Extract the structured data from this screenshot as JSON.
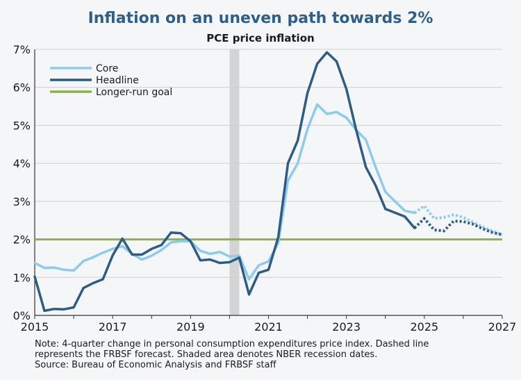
{
  "title": "Inflation on an uneven path towards 2%",
  "subtitle": "PCE price inflation",
  "notes": [
    "Note: 4-quarter change in personal consumption expenditures price index. Dashed line",
    "represents the FRBSF forecast. Shaded area denotes NBER recession dates.",
    "Source: Bureau of Economic Analysis and FRBSF staff"
  ],
  "chart_data": {
    "type": "line",
    "title": "Inflation on an uneven path towards 2%",
    "subtitle": "PCE price inflation",
    "xlabel": "",
    "ylabel": "",
    "xlim": [
      2015,
      2027
    ],
    "ylim": [
      0,
      7
    ],
    "x_ticks": [
      2015,
      2017,
      2019,
      2021,
      2023,
      2025,
      2027
    ],
    "x_tick_labels": [
      "2015",
      "2017",
      "2019",
      "2021",
      "2023",
      "2025",
      "2027"
    ],
    "y_ticks": [
      0,
      1,
      2,
      3,
      4,
      5,
      6,
      7
    ],
    "y_tick_labels": [
      "0%",
      "1%",
      "2%",
      "3%",
      "4%",
      "5%",
      "6%",
      "7%"
    ],
    "grid": "horizontal",
    "legend_position": "top-left",
    "recession": {
      "start": 2020.0,
      "end": 2020.25,
      "color": "#d4d4d4"
    },
    "series": [
      {
        "name": "Core",
        "color": "#8ccbef",
        "values": [
          [
            2015.0,
            1.38
          ],
          [
            2015.25,
            1.25
          ],
          [
            2015.5,
            1.26
          ],
          [
            2015.75,
            1.2
          ],
          [
            2016.0,
            1.18
          ],
          [
            2016.25,
            1.43
          ],
          [
            2016.5,
            1.53
          ],
          [
            2016.75,
            1.65
          ],
          [
            2017.0,
            1.75
          ],
          [
            2017.25,
            1.82
          ],
          [
            2017.5,
            1.62
          ],
          [
            2017.75,
            1.47
          ],
          [
            2018.0,
            1.57
          ],
          [
            2018.25,
            1.72
          ],
          [
            2018.5,
            1.92
          ],
          [
            2018.75,
            1.95
          ],
          [
            2019.0,
            1.95
          ],
          [
            2019.25,
            1.7
          ],
          [
            2019.5,
            1.62
          ],
          [
            2019.75,
            1.67
          ],
          [
            2020.0,
            1.55
          ],
          [
            2020.25,
            1.57
          ],
          [
            2020.5,
            0.95
          ],
          [
            2020.75,
            1.32
          ],
          [
            2021.0,
            1.42
          ],
          [
            2021.25,
            1.9
          ],
          [
            2021.5,
            3.55
          ],
          [
            2021.75,
            4.0
          ],
          [
            2022.0,
            4.9
          ],
          [
            2022.25,
            5.55
          ],
          [
            2022.5,
            5.3
          ],
          [
            2022.75,
            5.35
          ],
          [
            2023.0,
            5.2
          ],
          [
            2023.25,
            4.88
          ],
          [
            2023.5,
            4.62
          ],
          [
            2023.75,
            3.9
          ],
          [
            2024.0,
            3.25
          ],
          [
            2024.25,
            3.0
          ],
          [
            2024.5,
            2.75
          ],
          [
            2024.75,
            2.7
          ]
        ]
      },
      {
        "name": "Headline",
        "color": "#2d5c87",
        "values": [
          [
            2015.0,
            1.02
          ],
          [
            2015.25,
            0.12
          ],
          [
            2015.5,
            0.17
          ],
          [
            2015.75,
            0.16
          ],
          [
            2016.0,
            0.21
          ],
          [
            2016.25,
            0.72
          ],
          [
            2016.5,
            0.85
          ],
          [
            2016.75,
            0.95
          ],
          [
            2017.0,
            1.58
          ],
          [
            2017.25,
            2.02
          ],
          [
            2017.5,
            1.6
          ],
          [
            2017.75,
            1.6
          ],
          [
            2018.0,
            1.75
          ],
          [
            2018.25,
            1.85
          ],
          [
            2018.5,
            2.18
          ],
          [
            2018.75,
            2.16
          ],
          [
            2019.0,
            1.95
          ],
          [
            2019.25,
            1.45
          ],
          [
            2019.5,
            1.47
          ],
          [
            2019.75,
            1.38
          ],
          [
            2020.0,
            1.4
          ],
          [
            2020.25,
            1.52
          ],
          [
            2020.5,
            0.55
          ],
          [
            2020.75,
            1.12
          ],
          [
            2021.0,
            1.2
          ],
          [
            2021.25,
            2.05
          ],
          [
            2021.5,
            4.0
          ],
          [
            2021.75,
            4.6
          ],
          [
            2022.0,
            5.85
          ],
          [
            2022.25,
            6.62
          ],
          [
            2022.5,
            6.92
          ],
          [
            2022.75,
            6.68
          ],
          [
            2023.0,
            5.95
          ],
          [
            2023.25,
            4.88
          ],
          [
            2023.5,
            3.9
          ],
          [
            2023.75,
            3.42
          ],
          [
            2024.0,
            2.8
          ],
          [
            2024.25,
            2.7
          ],
          [
            2024.5,
            2.6
          ],
          [
            2024.75,
            2.3
          ]
        ]
      },
      {
        "name": "Longer-run goal",
        "color": "#8fb04b",
        "values": [
          [
            2015.0,
            2.0
          ],
          [
            2027.0,
            2.0
          ]
        ]
      }
    ],
    "forecast": [
      {
        "series": "Core",
        "color": "#8ccbef",
        "values": [
          [
            2024.75,
            2.7
          ],
          [
            2025.0,
            2.88
          ],
          [
            2025.25,
            2.55
          ],
          [
            2025.5,
            2.58
          ],
          [
            2025.75,
            2.65
          ],
          [
            2026.0,
            2.58
          ],
          [
            2026.25,
            2.45
          ],
          [
            2026.5,
            2.33
          ],
          [
            2026.75,
            2.22
          ],
          [
            2027.0,
            2.12
          ]
        ]
      },
      {
        "series": "Headline",
        "color": "#2d5c87",
        "values": [
          [
            2024.75,
            2.3
          ],
          [
            2025.0,
            2.55
          ],
          [
            2025.25,
            2.25
          ],
          [
            2025.5,
            2.22
          ],
          [
            2025.75,
            2.48
          ],
          [
            2026.0,
            2.47
          ],
          [
            2026.25,
            2.4
          ],
          [
            2026.5,
            2.28
          ],
          [
            2026.75,
            2.18
          ],
          [
            2027.0,
            2.12
          ]
        ]
      }
    ]
  }
}
